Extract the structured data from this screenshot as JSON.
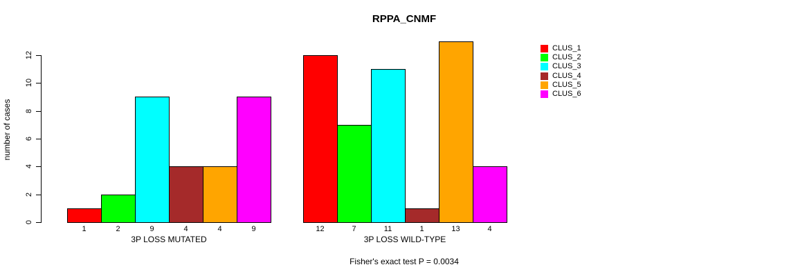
{
  "title": "RPPA_CNMF",
  "caption": "Fisher's exact test P = 0.0034",
  "y_axis": {
    "label": "number of cases",
    "ticks": [
      0,
      2,
      4,
      6,
      8,
      10,
      12
    ]
  },
  "legend": {
    "items": [
      {
        "label": "CLUS_1",
        "color": "#FF0000"
      },
      {
        "label": "CLUS_2",
        "color": "#00FF00"
      },
      {
        "label": "CLUS_3",
        "color": "#00FFFF"
      },
      {
        "label": "CLUS_4",
        "color": "#A52A2A"
      },
      {
        "label": "CLUS_5",
        "color": "#FFA500"
      },
      {
        "label": "CLUS_6",
        "color": "#FF00FF"
      }
    ]
  },
  "chart_data": {
    "type": "bar",
    "title": "RPPA_CNMF",
    "ylabel": "number of cases",
    "ylim": [
      0,
      13
    ],
    "yticks": [
      0,
      2,
      4,
      6,
      8,
      10,
      12
    ],
    "grid": false,
    "legend_position": "right",
    "series_names": [
      "CLUS_1",
      "CLUS_2",
      "CLUS_3",
      "CLUS_4",
      "CLUS_5",
      "CLUS_6"
    ],
    "series_colors": [
      "#FF0000",
      "#00FF00",
      "#00FFFF",
      "#A52A2A",
      "#FFA500",
      "#FF00FF"
    ],
    "groups": [
      {
        "label": "3P LOSS MUTATED",
        "values": [
          1,
          2,
          9,
          4,
          4,
          9
        ],
        "bar_labels": [
          "1",
          "2",
          "9",
          "4",
          "4",
          "9"
        ]
      },
      {
        "label": "3P LOSS WILD-TYPE",
        "values": [
          12,
          7,
          11,
          1,
          13,
          4
        ],
        "bar_labels": [
          "12",
          "7",
          "11",
          "1",
          "13",
          "4"
        ]
      }
    ],
    "annotation": "Fisher's exact test P = 0.0034"
  }
}
